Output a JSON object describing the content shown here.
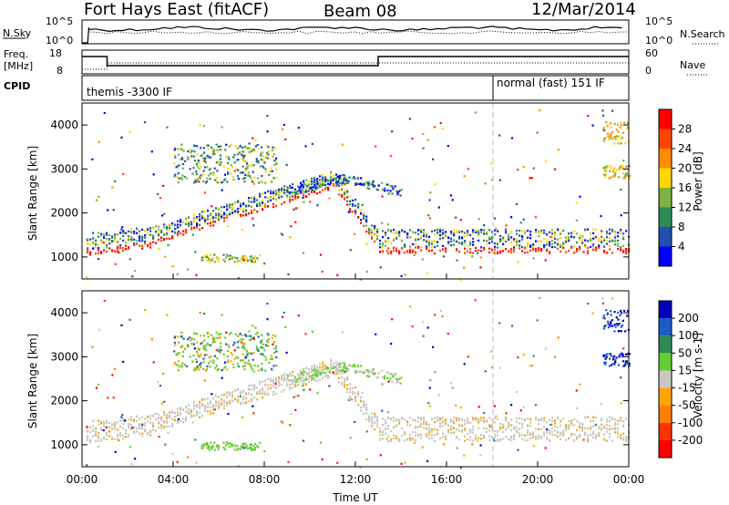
{
  "header": {
    "title": "Fort Hays East (fitACF)",
    "beam": "Beam 08",
    "date": "12/Mar/2014"
  },
  "noise_panel": {
    "left_label": "N.Sky",
    "right_label": "N.Search",
    "left_ticks": [
      "10^5",
      "10^0"
    ],
    "right_ticks": [
      "10^5",
      "10^0"
    ]
  },
  "freq_panel": {
    "left_label_1": "Freq.",
    "left_label_2": "[MHz]",
    "right_label": "Nave",
    "left_ticks": [
      "18",
      "8"
    ],
    "right_ticks": [
      "60",
      "0"
    ]
  },
  "cpid_panel": {
    "label": "CPID",
    "mode_1": "themis -3300 IF",
    "mode_2": "normal (fast) 151 IF"
  },
  "chart_data": [
    {
      "type": "heatmap",
      "title": "Power",
      "xlabel": "",
      "ylabel": "Slant Range [km]",
      "y_ticks": [
        "1000",
        "2000",
        "3000",
        "4000"
      ],
      "ylim": [
        500,
        4500
      ],
      "colorbar": {
        "label": "Power [dB]",
        "ticks": [
          "4",
          "8",
          "12",
          "16",
          "20",
          "24",
          "28"
        ],
        "range": [
          0,
          30
        ],
        "colors": [
          "#0000ff",
          "#1f4faf",
          "#2e8b57",
          "#7cb342",
          "#ffd700",
          "#ff8c00",
          "#ff4500",
          "#ff0000"
        ]
      }
    },
    {
      "type": "heatmap",
      "title": "Velocity",
      "xlabel": "Time UT",
      "ylabel": "Slant Range [km]",
      "y_ticks": [
        "1000",
        "2000",
        "3000",
        "4000"
      ],
      "ylim": [
        500,
        4500
      ],
      "colorbar": {
        "label": "Velocity [m s-1]",
        "ticks": [
          "200",
          "100",
          "50",
          "15",
          "-15",
          "-50",
          "-100",
          "-200"
        ],
        "range": [
          -250,
          250
        ],
        "colors": [
          "#0000bb",
          "#1e5bc6",
          "#2e8b57",
          "#66cc33",
          "#c8c8c0",
          "#ffa500",
          "#ff7f00",
          "#ff3300",
          "#ff0000"
        ]
      }
    }
  ],
  "time_axis": {
    "label": "Time UT",
    "ticks": [
      "00:00",
      "04:00",
      "08:00",
      "12:00",
      "16:00",
      "20:00",
      "00:00"
    ]
  }
}
